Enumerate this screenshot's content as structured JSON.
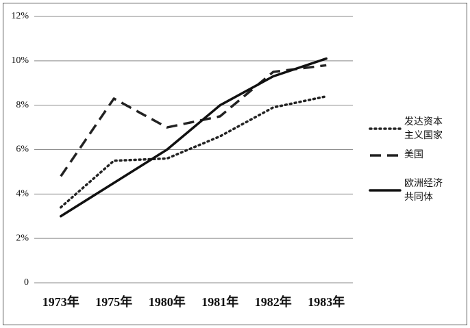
{
  "chart_data": {
    "type": "line",
    "categories": [
      "1973年",
      "1975年",
      "1980年",
      "1981年",
      "1982年",
      "1983年"
    ],
    "series": [
      {
        "name": "发达资本主义国家",
        "color": "#222222",
        "dash": "dotted",
        "values": [
          3.4,
          5.5,
          5.6,
          6.6,
          7.9,
          8.4
        ]
      },
      {
        "name": "美国",
        "color": "#222222",
        "dash": "dashed",
        "values": [
          4.8,
          8.3,
          7.0,
          7.5,
          9.5,
          9.8
        ]
      },
      {
        "name": "欧洲经济共同体",
        "color": "#111111",
        "dash": "solid",
        "values": [
          3.0,
          4.5,
          6.0,
          8.0,
          9.3,
          10.1
        ]
      }
    ],
    "ylim": [
      0,
      12
    ],
    "yticks": [
      0,
      {
        "value": 2,
        "label": "2%"
      },
      {
        "value": 4,
        "label": "4%"
      },
      {
        "value": 6,
        "label": "6%"
      },
      {
        "value": 8,
        "label": "8%"
      },
      {
        "value": 10,
        "label": "10%"
      },
      {
        "value": 12,
        "label": "12%"
      }
    ],
    "grid": true,
    "legend": "right"
  }
}
